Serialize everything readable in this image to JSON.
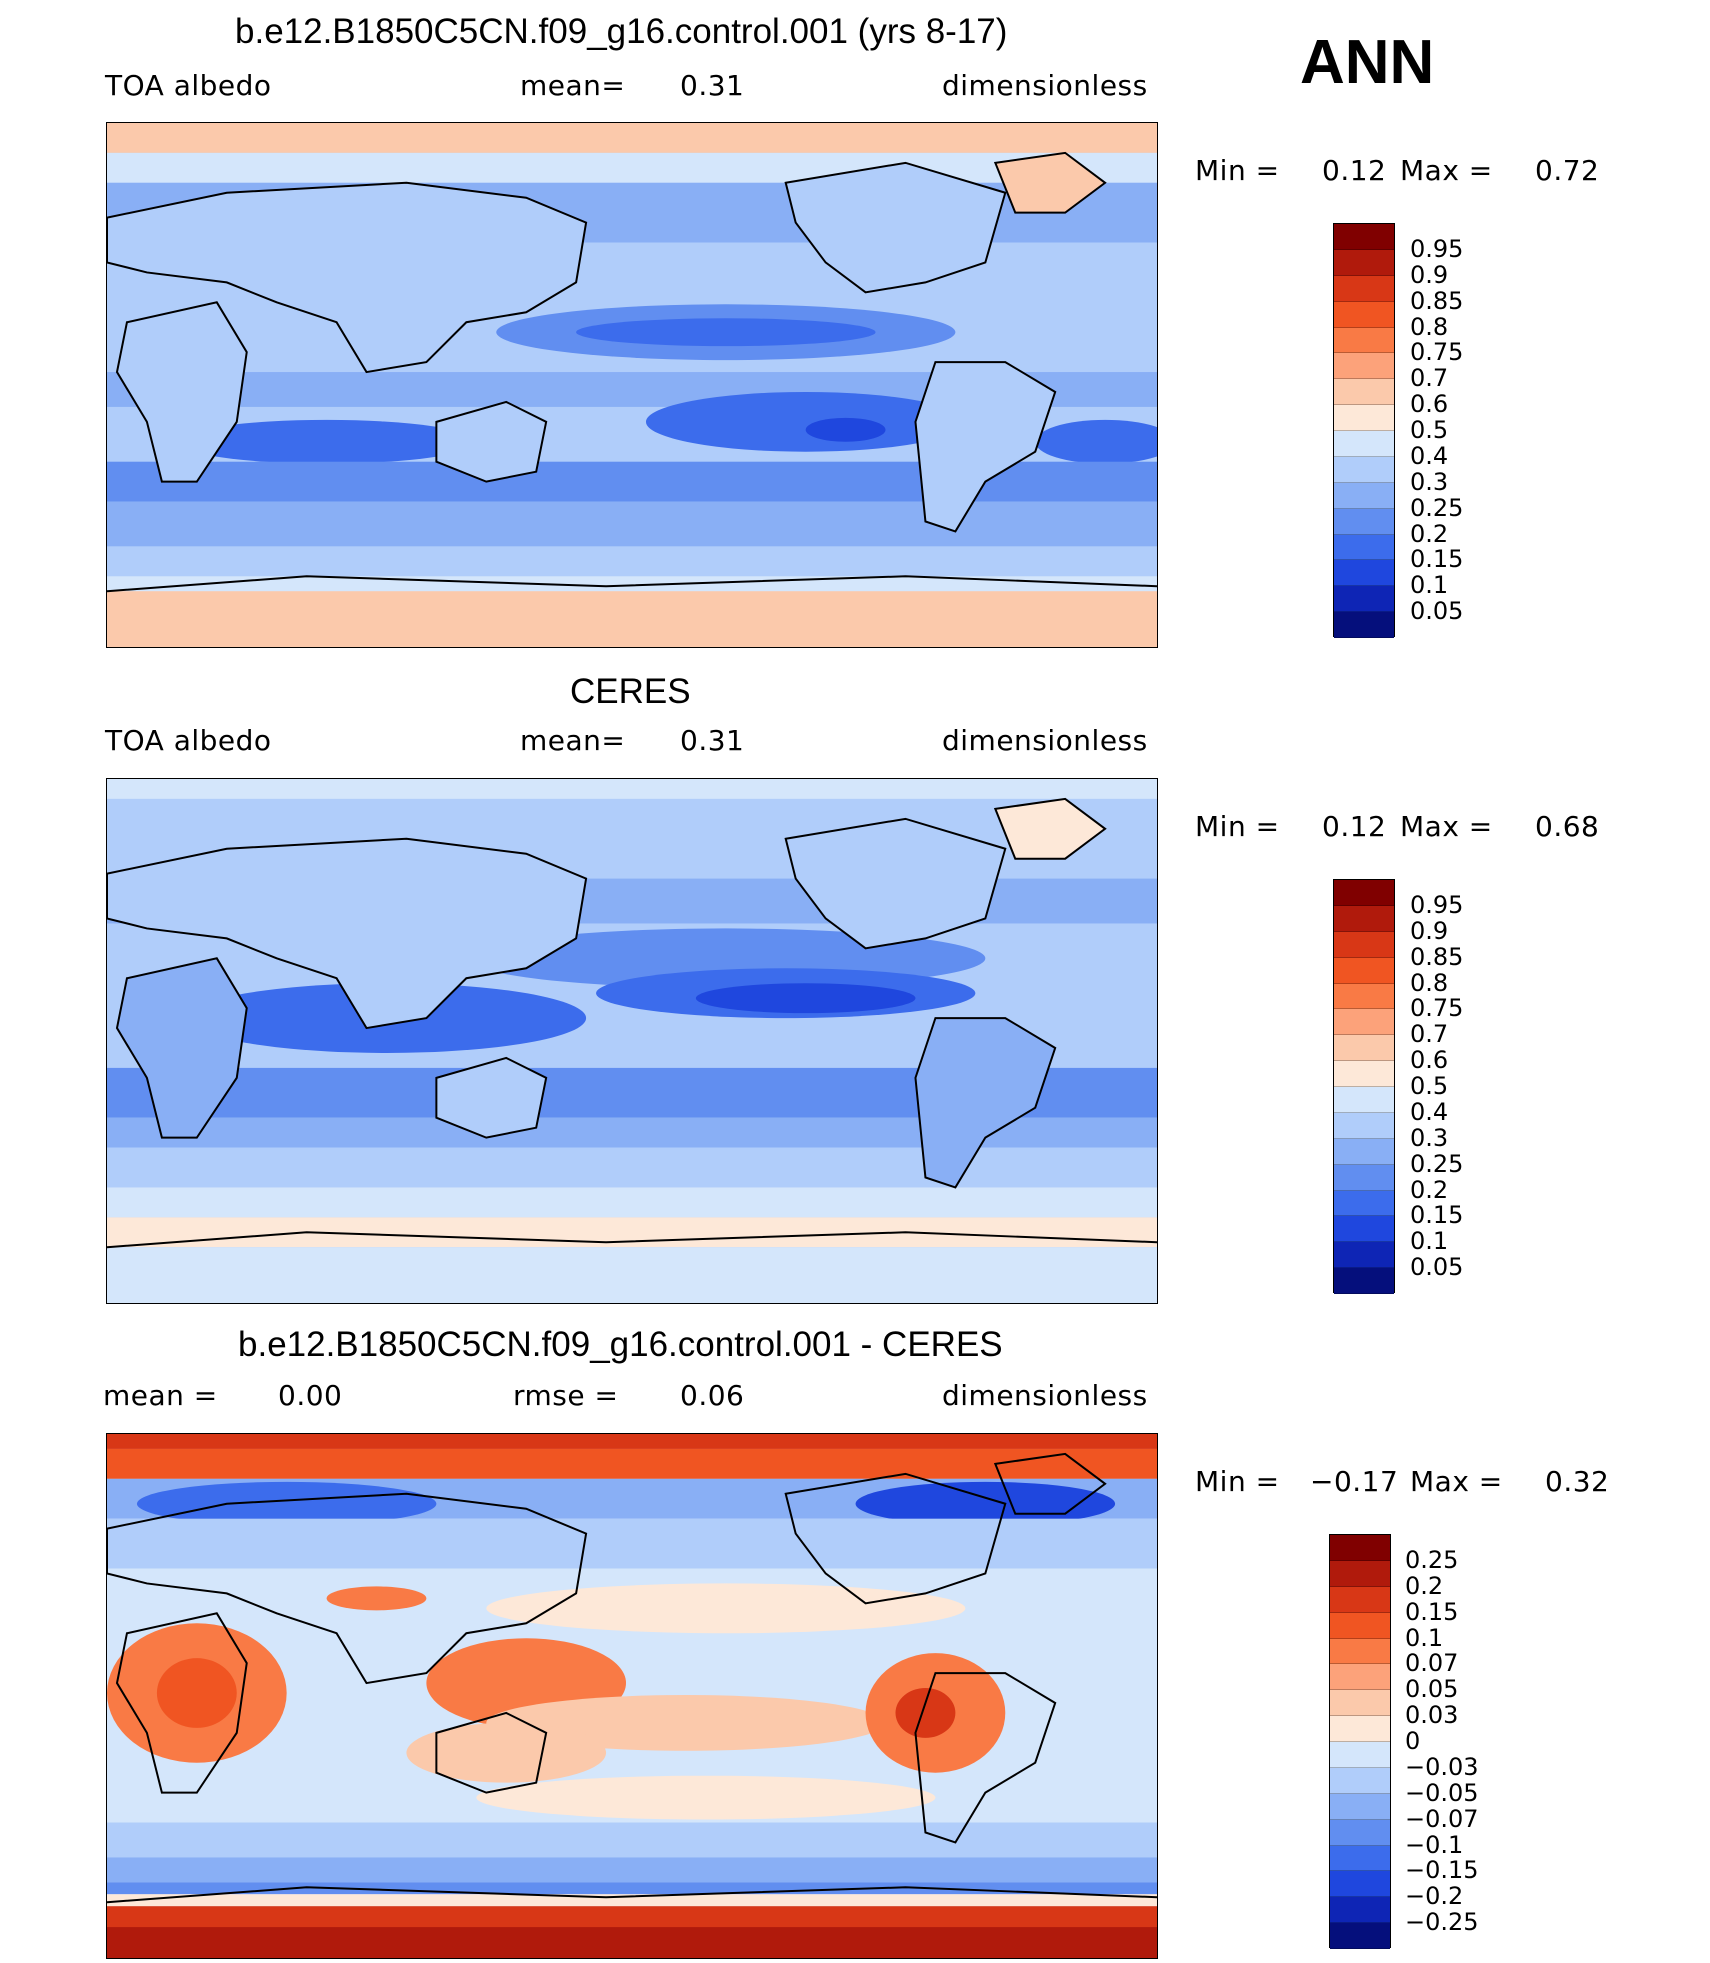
{
  "season": "ANN",
  "panels": [
    {
      "title": "b.e12.B1850C5CN.f09_g16.control.001 (yrs 8-17)",
      "left_label": "TOA albedo",
      "mid_label": "mean=",
      "mid_value": "0.31",
      "right_label": "dimensionless",
      "min_label": "Min =",
      "min_value": "0.12",
      "max_label": "Max =",
      "max_value": "0.72",
      "levels": [
        "0.95",
        "0.9",
        "0.85",
        "0.8",
        "0.75",
        "0.7",
        "0.6",
        "0.5",
        "0.4",
        "0.3",
        "0.25",
        "0.2",
        "0.15",
        "0.1",
        "0.05"
      ]
    },
    {
      "title": "CERES",
      "left_label": "TOA albedo",
      "mid_label": "mean=",
      "mid_value": "0.31",
      "right_label": "dimensionless",
      "min_label": "Min =",
      "min_value": "0.12",
      "max_label": "Max =",
      "max_value": "0.68",
      "levels": [
        "0.95",
        "0.9",
        "0.85",
        "0.8",
        "0.75",
        "0.7",
        "0.6",
        "0.5",
        "0.4",
        "0.3",
        "0.25",
        "0.2",
        "0.15",
        "0.1",
        "0.05"
      ]
    },
    {
      "title": "b.e12.B1850C5CN.f09_g16.control.001 - CERES",
      "left_label": "mean =",
      "left_value": "0.00",
      "mid_label": "rmse =",
      "mid_value": "0.06",
      "right_label": "dimensionless",
      "min_label": "Min =",
      "min_value": "−0.17",
      "max_label": "Max =",
      "max_value": "0.32",
      "levels": [
        "0.25",
        "0.2",
        "0.15",
        "0.1",
        "0.07",
        "0.05",
        "0.03",
        "0",
        "−0.03",
        "−0.05",
        "−0.07",
        "−0.1",
        "−0.15",
        "−0.2",
        "−0.25"
      ]
    }
  ],
  "palette": [
    "#800000",
    "#b01a0c",
    "#d83716",
    "#f05522",
    "#f97a45",
    "#fca27a",
    "#fbc9ab",
    "#fde8d8",
    "#d4e6fb",
    "#b0cdfa",
    "#89aff5",
    "#618ef0",
    "#3c6cec",
    "#1f47de",
    "#0e25b5",
    "#050f7c"
  ]
}
